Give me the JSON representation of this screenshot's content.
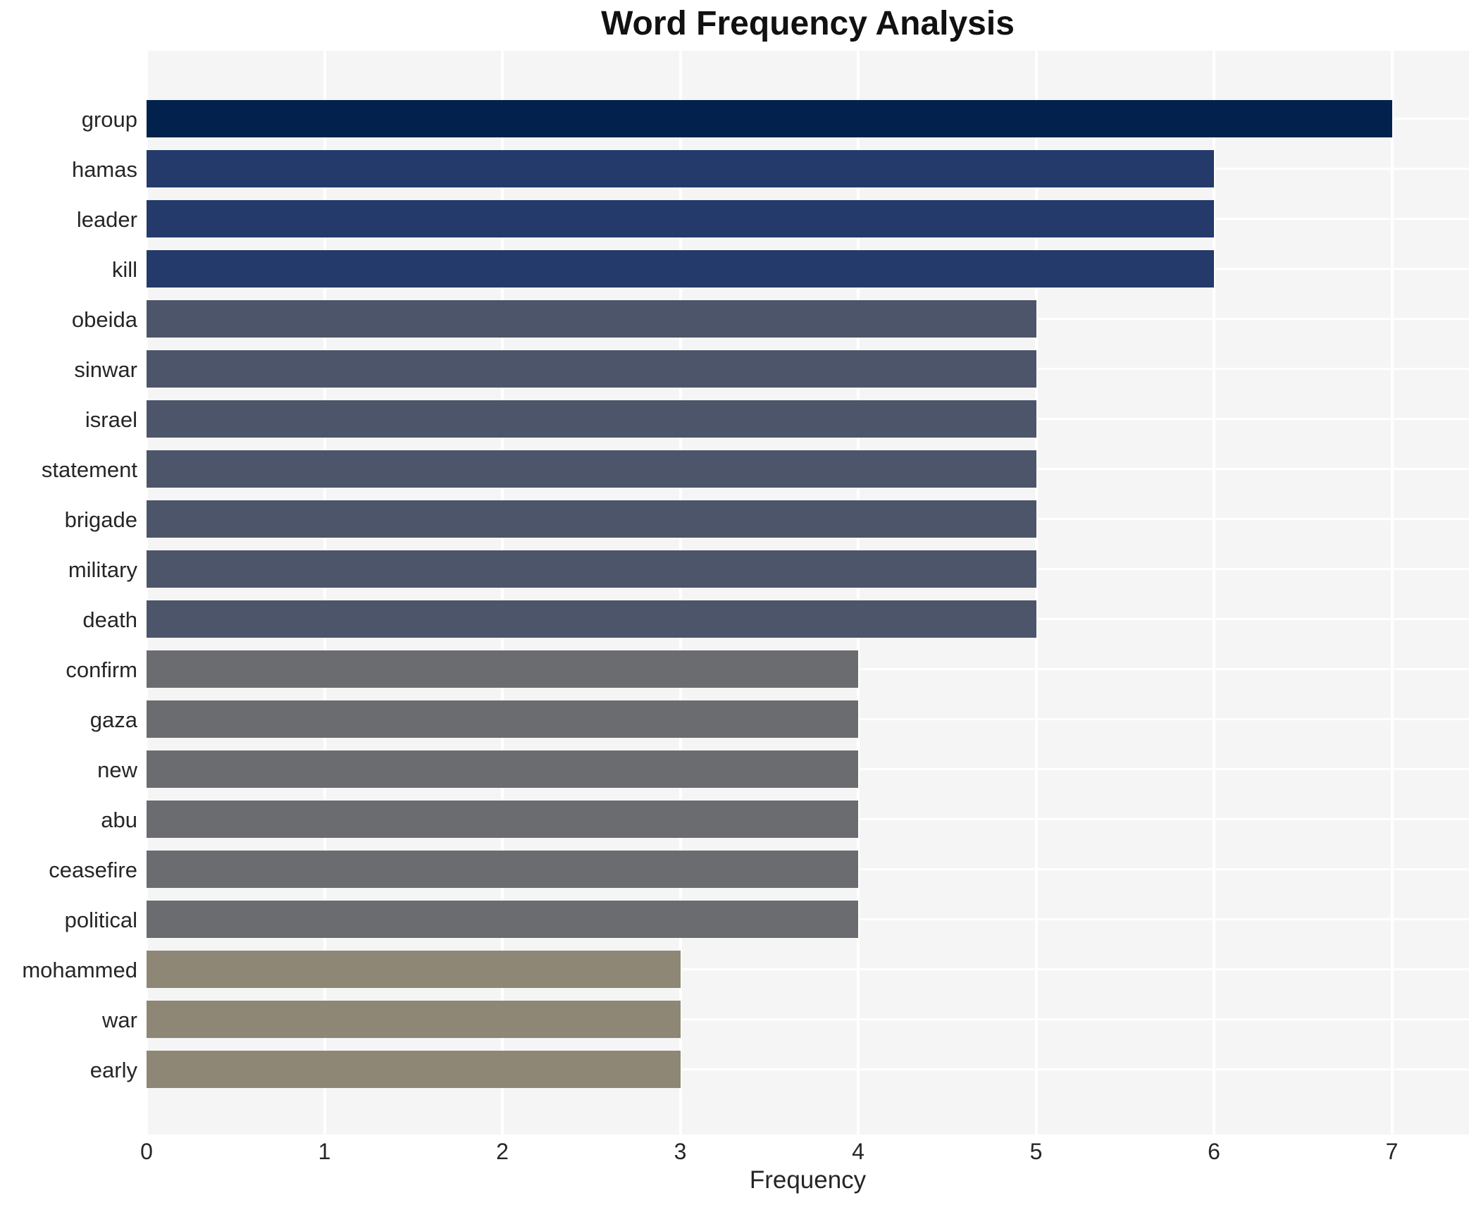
{
  "chart_data": {
    "type": "bar",
    "orientation": "horizontal",
    "title": "Word Frequency Analysis",
    "xlabel": "Frequency",
    "ylabel": "",
    "categories": [
      "group",
      "hamas",
      "leader",
      "kill",
      "obeida",
      "sinwar",
      "israel",
      "statement",
      "brigade",
      "military",
      "death",
      "confirm",
      "gaza",
      "new",
      "abu",
      "ceasefire",
      "political",
      "mohammed",
      "war",
      "early"
    ],
    "values": [
      7,
      6,
      6,
      6,
      5,
      5,
      5,
      5,
      5,
      5,
      5,
      4,
      4,
      4,
      4,
      4,
      4,
      3,
      3,
      3
    ],
    "xticks": [
      "0",
      "1",
      "2",
      "3",
      "4",
      "5",
      "6",
      "7"
    ],
    "xlim": [
      0,
      7.43
    ],
    "grid": true,
    "legend_position": "none",
    "colors": {
      "page_background": "#ffffff",
      "plot_background": "#f5f5f5",
      "gridline": "#ffffff",
      "tick_text": "#262626",
      "title_text": "#111111",
      "value_colors": {
        "3": "#8e8776",
        "4": "#6b6c70",
        "5": "#4c5569",
        "6": "#243a6b",
        "7": "#02224d"
      }
    }
  }
}
